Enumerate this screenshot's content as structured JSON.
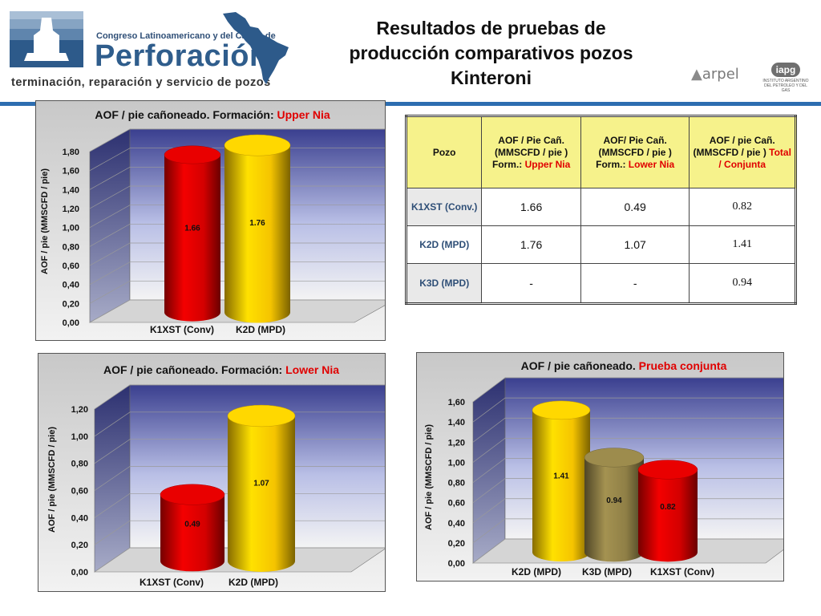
{
  "header": {
    "brand_top": "Congreso Latinoamericano y del Caribe de",
    "brand_name": "Perforación",
    "brand_sub": "terminación, reparación y servicio de pozos",
    "title": "Resultados de pruebas de producción comparativos pozos Kinteroni",
    "partner1": "arpel",
    "partner2": "iapg",
    "partner2_caption": "INSTITUTO ARGENTINO DEL PETROLEO Y DEL GAS"
  },
  "table": {
    "headers": [
      {
        "text": "Pozo"
      },
      {
        "text": "AOF / Pie Cañ. (MMSCFD / pie ) Form.: ",
        "highlight": "Upper Nia"
      },
      {
        "text": "AOF/ Pie Cañ. (MMSCFD / pie ) Form.: ",
        "highlight": "Lower Nia"
      },
      {
        "text": "AOF / pie Cañ. (MMSCFD / pie ) ",
        "highlight": "Total / Conjunta"
      }
    ],
    "rows": [
      {
        "pozo": "K1XST (Conv.)",
        "upper": "1.66",
        "lower": "0.49",
        "total": "0.82"
      },
      {
        "pozo": "K2D (MPD)",
        "upper": "1.76",
        "lower": "1.07",
        "total": "1.41"
      },
      {
        "pozo": "K3D (MPD)",
        "upper": "-",
        "lower": "-",
        "total": "0.94"
      }
    ]
  },
  "chart_data": [
    {
      "type": "bar",
      "title_prefix": "AOF / pie cañoneado.  Formación: ",
      "title_highlight": "Upper Nia",
      "ylabel": "AOF / pie  (MMSCFD / pie)",
      "categories": [
        "K1XST (Conv)",
        "K2D (MPD)"
      ],
      "values": [
        1.66,
        1.76
      ],
      "data_labels": [
        "1.66",
        "1.76"
      ],
      "colors": [
        "#d40000",
        "#f5c400"
      ],
      "yticks": [
        "0,00",
        "0,20",
        "0,40",
        "0,60",
        "0,80",
        "1,00",
        "1,20",
        "1,40",
        "1,60",
        "1,80"
      ],
      "ylim": [
        0,
        1.8
      ]
    },
    {
      "type": "bar",
      "title_prefix": "AOF / pie cañoneado.  Formación: ",
      "title_highlight": "Lower Nia",
      "ylabel": "AOF / pie  (MMSCFD / pie)",
      "categories": [
        "K1XST (Conv)",
        "K2D (MPD)"
      ],
      "values": [
        0.49,
        1.07
      ],
      "data_labels": [
        "0.49",
        "1.07"
      ],
      "colors": [
        "#d40000",
        "#f5c400"
      ],
      "yticks": [
        "0,00",
        "0,20",
        "0,40",
        "0,60",
        "0,80",
        "1,00",
        "1,20"
      ],
      "ylim": [
        0,
        1.2
      ]
    },
    {
      "type": "bar",
      "title_prefix": "AOF / pie cañoneado.  ",
      "title_highlight": "Prueba conjunta",
      "ylabel": "AOF / pie   (MMSCFD / pie)",
      "categories": [
        "K2D (MPD)",
        "K3D (MPD)",
        "K1XST (Conv)"
      ],
      "values": [
        1.41,
        0.94,
        0.82
      ],
      "data_labels": [
        "1.41",
        "0.94",
        "0.82"
      ],
      "colors": [
        "#f5c400",
        "#8f7f46",
        "#d40000"
      ],
      "yticks": [
        "0,00",
        "0,20",
        "0,40",
        "0,60",
        "0,80",
        "1,00",
        "1,20",
        "1,40",
        "1,60"
      ],
      "ylim": [
        0,
        1.6
      ]
    }
  ]
}
